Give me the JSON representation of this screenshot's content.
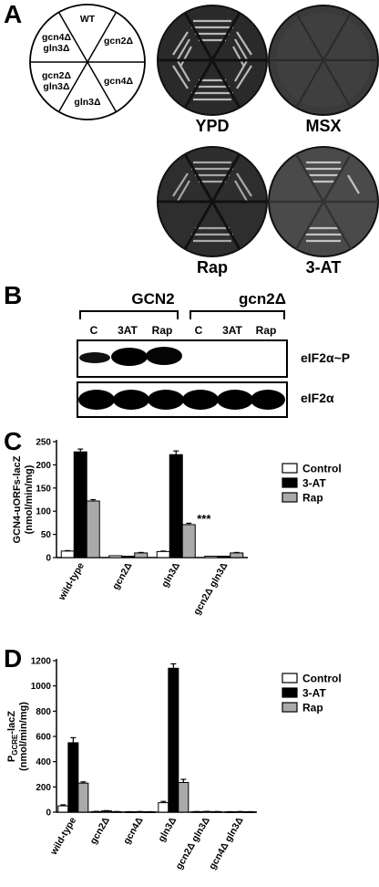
{
  "panelA": {
    "label": "A",
    "diagram": [
      "WT",
      "gcn2Δ",
      "gcn4Δ",
      "gln3Δ",
      "gcn2Δ gln3Δ",
      "gcn4Δ gln3Δ"
    ],
    "diagram_display": {
      "wt": "WT",
      "gcn2": "gcn2Δ",
      "gcn4": "gcn4Δ",
      "gln3": "gln3Δ",
      "gcn2gln3_l1": "gcn2Δ",
      "gcn2gln3_l2": "gln3Δ",
      "gcn4gln3_l1": "gcn4Δ",
      "gcn4gln3_l2": "gln3Δ"
    },
    "plates": [
      "YPD",
      "MSX",
      "Rap",
      "3-AT"
    ]
  },
  "panelB": {
    "label": "B",
    "groups": [
      "GCN2",
      "gcn2Δ"
    ],
    "lanes": [
      "C",
      "3AT",
      "Rap",
      "C",
      "3AT",
      "Rap"
    ],
    "blots": [
      "eIF2α~P",
      "eIF2α"
    ]
  },
  "chart_data": [
    {
      "panel": "C",
      "type": "bar",
      "ylabel_l1": "GCN4-uORFs-lacZ",
      "ylabel_l2": "(nmol/min/mg)",
      "categories": [
        "wild-type",
        "gcn2Δ",
        "gln3Δ",
        "gcn2Δ gln3Δ"
      ],
      "series": [
        {
          "name": "Control",
          "values": [
            14,
            4,
            13,
            3
          ],
          "color": "#ffffff"
        },
        {
          "name": "3-AT",
          "values": [
            228,
            3,
            222,
            3
          ],
          "color": "#000000"
        },
        {
          "name": "Rap",
          "values": [
            122,
            10,
            71,
            10
          ],
          "color": "#aaaaaa"
        }
      ],
      "errors": [
        [
          1,
          0.5,
          1,
          0.5
        ],
        [
          6,
          0.5,
          8,
          0.5
        ],
        [
          3,
          1,
          3,
          1
        ]
      ],
      "yticks": [
        0,
        50,
        100,
        150,
        200,
        250
      ],
      "ylim": [
        0,
        250
      ],
      "annotation": "***",
      "legend": "top-right"
    },
    {
      "panel": "D",
      "type": "bar",
      "ylabel_l1": "P",
      "ylabel_sub": "GCRE",
      "ylabel_suffix": "-lacZ",
      "ylabel_l2": "(nmol/min/mg)",
      "categories": [
        "wild-type",
        "gcn2Δ",
        "gcn4Δ",
        "gln3Δ",
        "gcn2Δ gln3Δ",
        "gcn4Δ gln3Δ"
      ],
      "series": [
        {
          "name": "Control",
          "values": [
            50,
            5,
            3,
            75,
            4,
            3
          ],
          "color": "#ffffff"
        },
        {
          "name": "3-AT",
          "values": [
            550,
            10,
            4,
            1140,
            5,
            4
          ],
          "color": "#000000"
        },
        {
          "name": "Rap",
          "values": [
            230,
            4,
            3,
            235,
            4,
            3
          ],
          "color": "#aaaaaa"
        }
      ],
      "errors": [
        [
          8,
          1,
          1,
          10,
          1,
          1
        ],
        [
          40,
          2,
          1,
          35,
          1,
          1
        ],
        [
          10,
          1,
          1,
          25,
          1,
          1
        ]
      ],
      "yticks": [
        0,
        200,
        400,
        600,
        800,
        1000,
        1200
      ],
      "ylim": [
        0,
        1200
      ],
      "legend": "top-right"
    }
  ]
}
